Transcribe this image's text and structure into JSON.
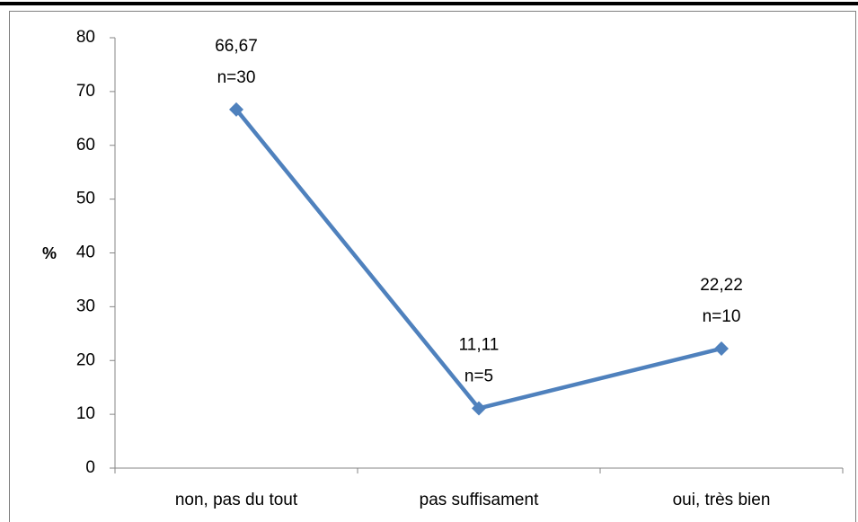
{
  "chart_data": {
    "type": "line",
    "ylabel": "%",
    "categories": [
      "non, pas du tout",
      "pas suffisament",
      "oui, très bien"
    ],
    "series": [
      {
        "name": null,
        "color": "#4f81bd",
        "values": [
          66.67,
          11.11,
          22.22
        ],
        "value_labels": [
          "66,67",
          "11,11",
          "22,22"
        ],
        "count_labels": [
          "n=30",
          "n=5",
          "n=10"
        ]
      }
    ],
    "ylim": [
      0,
      80
    ],
    "yticks": [
      0,
      10,
      20,
      30,
      40,
      50,
      60,
      70,
      80
    ],
    "grid": false
  }
}
